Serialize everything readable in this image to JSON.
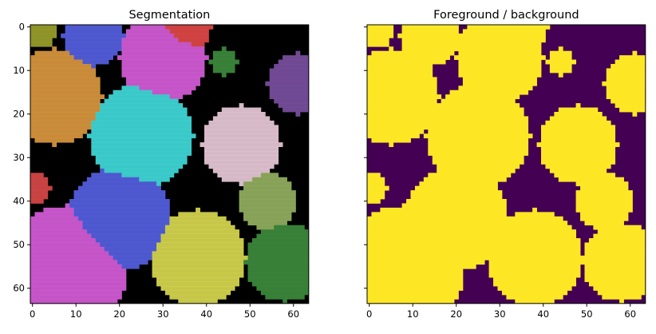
{
  "chart_data": [
    {
      "type": "heatmap",
      "title": "Segmentation",
      "xlabel": "",
      "ylabel": "",
      "xlim": [
        0,
        63
      ],
      "ylim": [
        63,
        0
      ],
      "x_ticks": [
        "0",
        "10",
        "20",
        "30",
        "40",
        "50",
        "60"
      ],
      "y_ticks": [
        "0",
        "10",
        "20",
        "30",
        "40",
        "50",
        "60"
      ],
      "grid": false,
      "background": "#000000",
      "regions": [
        {
          "color": "#9aa02a",
          "cx": 1.5,
          "cy": 1,
          "r": 4
        },
        {
          "color": "#5560e0",
          "cx": 14,
          "cy": 2,
          "r": 7
        },
        {
          "color": "#e04848",
          "cx": 35,
          "cy": 0,
          "r": 6
        },
        {
          "color": "#d55cd8",
          "cx": 30,
          "cy": 7,
          "r": 10
        },
        {
          "color": "#3d8a3d",
          "cx": 44,
          "cy": 8,
          "r": 3
        },
        {
          "color": "#7a4fa0",
          "cx": 61,
          "cy": 13,
          "r": 7
        },
        {
          "color": "#d9973e",
          "cx": 5,
          "cy": 16,
          "r": 11
        },
        {
          "color": "#40d9d9",
          "cx": 25,
          "cy": 25,
          "r": 12
        },
        {
          "color": "#e8c9d8",
          "cx": 48,
          "cy": 27,
          "r": 9
        },
        {
          "color": "#93b060",
          "cx": 54,
          "cy": 40,
          "r": 6.5
        },
        {
          "color": "#d84848",
          "cx": 0.5,
          "cy": 37,
          "r": 3.5
        },
        {
          "color": "#5560e0",
          "cx": 20,
          "cy": 44,
          "r": 12
        },
        {
          "color": "#d55cd8",
          "cx": 8,
          "cy": 55,
          "r": 14
        },
        {
          "color": "#d7d84f",
          "cx": 38,
          "cy": 53,
          "r": 11
        },
        {
          "color": "#3d8a3d",
          "cx": 58,
          "cy": 54,
          "r": 9
        }
      ]
    },
    {
      "type": "heatmap",
      "title": "Foreground / background",
      "xlabel": "",
      "ylabel": "",
      "xlim": [
        0,
        63
      ],
      "ylim": [
        63,
        0
      ],
      "x_ticks": [
        "0",
        "10",
        "20",
        "30",
        "40",
        "50",
        "60"
      ],
      "y_ticks": [],
      "grid": false,
      "colors": {
        "foreground": "#fde725",
        "background": "#440154"
      },
      "regions": [
        {
          "cx": 1.5,
          "cy": 1,
          "r": 4
        },
        {
          "cx": 14,
          "cy": 2,
          "r": 7
        },
        {
          "cx": 35,
          "cy": 0,
          "r": 6
        },
        {
          "cx": 30,
          "cy": 7,
          "r": 10
        },
        {
          "cx": 44,
          "cy": 8,
          "r": 3
        },
        {
          "cx": 61,
          "cy": 13,
          "r": 7
        },
        {
          "cx": 5,
          "cy": 16,
          "r": 11
        },
        {
          "cx": 25,
          "cy": 25,
          "r": 12
        },
        {
          "cx": 48,
          "cy": 27,
          "r": 9
        },
        {
          "cx": 54,
          "cy": 40,
          "r": 6.5
        },
        {
          "cx": 0.5,
          "cy": 37,
          "r": 3.5
        },
        {
          "cx": 20,
          "cy": 44,
          "r": 12
        },
        {
          "cx": 8,
          "cy": 55,
          "r": 14
        },
        {
          "cx": 38,
          "cy": 53,
          "r": 11
        },
        {
          "cx": 58,
          "cy": 54,
          "r": 9
        }
      ]
    }
  ]
}
